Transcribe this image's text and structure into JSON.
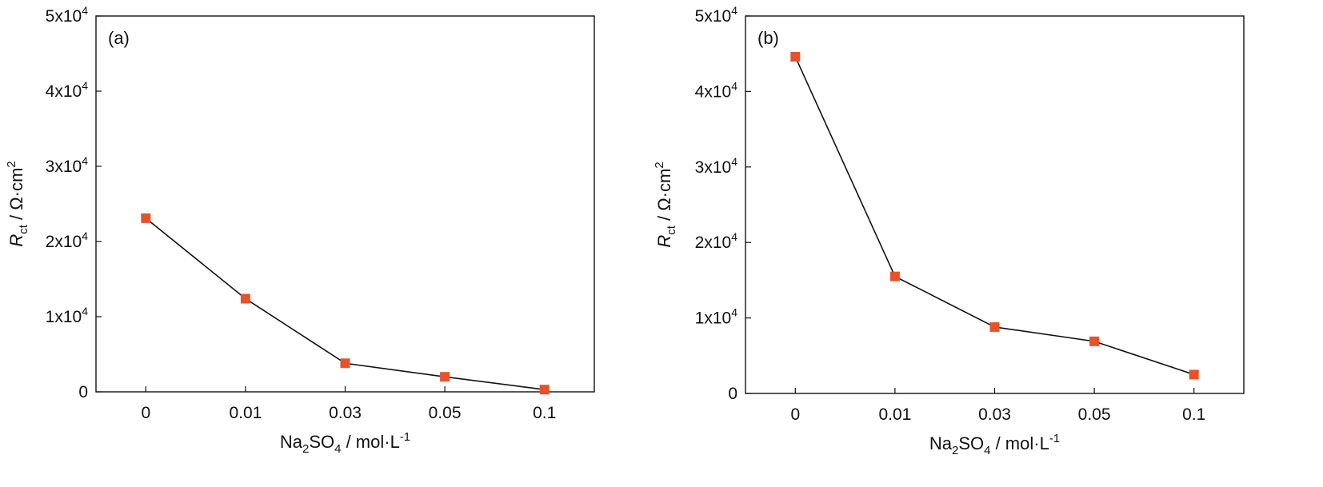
{
  "chart_data": [
    {
      "type": "line",
      "panel_label": "(a)",
      "categories": [
        "0",
        "0.01",
        "0.03",
        "0.05",
        "0.1"
      ],
      "series": [
        {
          "values": [
            23100,
            12400,
            3800,
            2000,
            300
          ]
        }
      ],
      "ylim": [
        0,
        50000
      ],
      "yticks": [
        {
          "value": 0,
          "base": "0",
          "exp": ""
        },
        {
          "value": 10000,
          "base": "1x10",
          "exp": "4"
        },
        {
          "value": 20000,
          "base": "2x10",
          "exp": "4"
        },
        {
          "value": 30000,
          "base": "3x10",
          "exp": "4"
        },
        {
          "value": 40000,
          "base": "4x10",
          "exp": "4"
        },
        {
          "value": 50000,
          "base": "5x10",
          "exp": "4"
        }
      ],
      "xlabel": {
        "t1": "Na",
        "s1": "2",
        "t2": "SO",
        "s2": "4",
        "t3": " / mol·L",
        "sup": "-1"
      },
      "ylabel": {
        "main": "R",
        "sub": "ct",
        "rest": " / Ω·cm",
        "sup": "2"
      },
      "marker": "square",
      "colors": {
        "marker": "#E8522B",
        "line": "#111111"
      },
      "grid": false
    },
    {
      "type": "line",
      "panel_label": "(b)",
      "categories": [
        "0",
        "0.01",
        "0.03",
        "0.05",
        "0.1"
      ],
      "series": [
        {
          "values": [
            44600,
            15500,
            8800,
            6900,
            2500
          ]
        }
      ],
      "ylim": [
        0,
        50000
      ],
      "yticks": [
        {
          "value": 0,
          "base": "0",
          "exp": ""
        },
        {
          "value": 10000,
          "base": "1x10",
          "exp": "4"
        },
        {
          "value": 20000,
          "base": "2x10",
          "exp": "4"
        },
        {
          "value": 30000,
          "base": "3x10",
          "exp": "4"
        },
        {
          "value": 40000,
          "base": "4x10",
          "exp": "4"
        },
        {
          "value": 50000,
          "base": "5x10",
          "exp": "4"
        }
      ],
      "xlabel": {
        "t1": "Na",
        "s1": "2",
        "t2": "SO",
        "s2": "4",
        "t3": " / mol·L",
        "sup": "-1"
      },
      "ylabel": {
        "main": "R",
        "sub": "ct",
        "rest": " / Ω·cm",
        "sup": "2"
      },
      "marker": "square",
      "colors": {
        "marker": "#E8522B",
        "line": "#111111"
      },
      "grid": false
    }
  ]
}
